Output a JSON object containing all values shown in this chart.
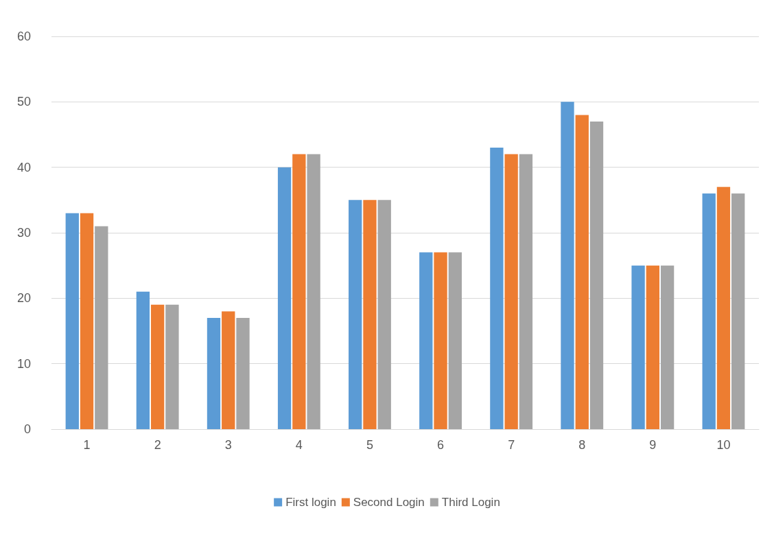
{
  "chart_data": {
    "type": "bar",
    "categories": [
      "1",
      "2",
      "3",
      "4",
      "5",
      "6",
      "7",
      "8",
      "9",
      "10"
    ],
    "series": [
      {
        "name": "First login",
        "color": "#5b9bd5",
        "values": [
          33,
          21,
          17,
          40,
          35,
          27,
          43,
          50,
          25,
          36
        ]
      },
      {
        "name": "Second Login",
        "color": "#ed7d31",
        "values": [
          33,
          19,
          18,
          42,
          35,
          27,
          42,
          48,
          25,
          37
        ]
      },
      {
        "name": "Third Login",
        "color": "#a5a5a5",
        "values": [
          31,
          19,
          17,
          42,
          35,
          27,
          42,
          47,
          25,
          36
        ]
      }
    ],
    "ylim": [
      0,
      60
    ],
    "yticks": [
      0,
      10,
      20,
      30,
      40,
      50,
      60
    ],
    "grid": "y",
    "legend": "bottom"
  }
}
